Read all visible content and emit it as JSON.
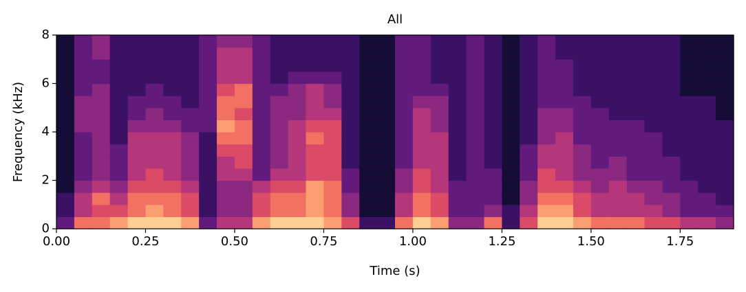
{
  "chart_data": {
    "type": "heatmap",
    "title": "All",
    "xlabel": "Time (s)",
    "ylabel": "Frequency (kHz)",
    "colormap": "magma",
    "zlim": [
      0,
      10
    ],
    "xlim": [
      0,
      1.9
    ],
    "ylim": [
      0,
      8
    ],
    "xticks": [
      {
        "value": 0,
        "label": "0.00"
      },
      {
        "value": 0.25,
        "label": "0.25"
      },
      {
        "value": 0.5,
        "label": "0.50"
      },
      {
        "value": 0.75,
        "label": "0.75"
      },
      {
        "value": 1,
        "label": "1.00"
      },
      {
        "value": 1.25,
        "label": "1.25"
      },
      {
        "value": 1.5,
        "label": "1.50"
      },
      {
        "value": 1.75,
        "label": "1.75"
      }
    ],
    "yticks": [
      0,
      2,
      4,
      6,
      8
    ],
    "z": [
      [
        3,
        2,
        2,
        1,
        1,
        1,
        1,
        1,
        1,
        1,
        1,
        1,
        1,
        1,
        1,
        1
      ],
      [
        7,
        5,
        5,
        4,
        3,
        3,
        3,
        3,
        4,
        4,
        4,
        3,
        3,
        3,
        3,
        3
      ],
      [
        7,
        6,
        7,
        5,
        4,
        4,
        4,
        4,
        4,
        4,
        4,
        4,
        3,
        3,
        4,
        4
      ],
      [
        8,
        6,
        5,
        4,
        3,
        3,
        3,
        2,
        2,
        2,
        2,
        2,
        2,
        2,
        2,
        2
      ],
      [
        9,
        7,
        7,
        6,
        5,
        5,
        5,
        5,
        4,
        3,
        3,
        2,
        2,
        2,
        2,
        2
      ],
      [
        9,
        8,
        7,
        6,
        6,
        5,
        5,
        5,
        4,
        4,
        3,
        3,
        2,
        2,
        2,
        2
      ],
      [
        9,
        7,
        7,
        6,
        5,
        5,
        5,
        5,
        4,
        3,
        3,
        2,
        2,
        2,
        2,
        2
      ],
      [
        8,
        6,
        6,
        5,
        4,
        4,
        4,
        4,
        3,
        3,
        2,
        2,
        2,
        2,
        2,
        2
      ],
      [
        3,
        2,
        2,
        2,
        2,
        2,
        2,
        2,
        3,
        3,
        3,
        3,
        3,
        3,
        3,
        3
      ],
      [
        5,
        4,
        4,
        4,
        5,
        5,
        6,
        7,
        8,
        7,
        7,
        6,
        5,
        5,
        5,
        4
      ],
      [
        5,
        4,
        4,
        4,
        5,
        6,
        6,
        7,
        7,
        6,
        7,
        7,
        5,
        5,
        5,
        4
      ],
      [
        8,
        6,
        6,
        5,
        3,
        3,
        3,
        3,
        3,
        3,
        3,
        3,
        3,
        3,
        3,
        3
      ],
      [
        9,
        7,
        7,
        6,
        5,
        4,
        4,
        4,
        4,
        4,
        4,
        3,
        2,
        2,
        2,
        2
      ],
      [
        9,
        7,
        7,
        6,
        5,
        5,
        5,
        5,
        5,
        4,
        4,
        4,
        3,
        2,
        2,
        2
      ],
      [
        9,
        8,
        8,
        8,
        6,
        6,
        6,
        7,
        6,
        5,
        5,
        5,
        3,
        2,
        2,
        2
      ],
      [
        8,
        7,
        7,
        7,
        6,
        6,
        6,
        6,
        6,
        5,
        4,
        4,
        3,
        2,
        2,
        2
      ],
      [
        6,
        4,
        4,
        3,
        3,
        2,
        2,
        2,
        2,
        2,
        2,
        2,
        2,
        2,
        2,
        2
      ],
      [
        2,
        1,
        1,
        1,
        1,
        1,
        1,
        1,
        1,
        1,
        1,
        1,
        1,
        1,
        1,
        1
      ],
      [
        2,
        1,
        1,
        1,
        1,
        1,
        1,
        1,
        1,
        1,
        1,
        1,
        1,
        1,
        1,
        1
      ],
      [
        7,
        5,
        5,
        4,
        4,
        3,
        3,
        3,
        3,
        3,
        3,
        3,
        3,
        3,
        3,
        3
      ],
      [
        9,
        7,
        7,
        6,
        6,
        5,
        5,
        5,
        5,
        5,
        4,
        3,
        3,
        3,
        3,
        3
      ],
      [
        8,
        6,
        6,
        5,
        5,
        5,
        5,
        5,
        4,
        4,
        4,
        3,
        2,
        2,
        2,
        2
      ],
      [
        4,
        3,
        3,
        3,
        2,
        2,
        2,
        2,
        2,
        2,
        2,
        2,
        2,
        2,
        2,
        2
      ],
      [
        4,
        3,
        3,
        3,
        3,
        3,
        3,
        3,
        3,
        3,
        3,
        3,
        3,
        3,
        3,
        3
      ],
      [
        7,
        4,
        3,
        3,
        3,
        2,
        2,
        2,
        2,
        2,
        2,
        2,
        2,
        2,
        2,
        2
      ],
      [
        2,
        2,
        1,
        1,
        1,
        1,
        1,
        1,
        1,
        1,
        1,
        1,
        1,
        1,
        1,
        1
      ],
      [
        6,
        5,
        4,
        4,
        3,
        3,
        3,
        2,
        2,
        2,
        2,
        2,
        2,
        2,
        2,
        2
      ],
      [
        9,
        8,
        7,
        6,
        6,
        5,
        5,
        4,
        4,
        4,
        3,
        3,
        3,
        3,
        3,
        3
      ],
      [
        9,
        8,
        7,
        6,
        5,
        5,
        5,
        5,
        4,
        4,
        3,
        3,
        3,
        3,
        2,
        2
      ],
      [
        8,
        6,
        6,
        5,
        4,
        4,
        4,
        3,
        3,
        3,
        3,
        2,
        2,
        2,
        2,
        2
      ],
      [
        7,
        5,
        5,
        4,
        4,
        3,
        3,
        3,
        3,
        3,
        2,
        2,
        2,
        2,
        2,
        2
      ],
      [
        7,
        5,
        5,
        5,
        4,
        4,
        3,
        3,
        3,
        2,
        2,
        2,
        2,
        2,
        2,
        2
      ],
      [
        7,
        5,
        5,
        4,
        3,
        3,
        3,
        3,
        3,
        2,
        2,
        2,
        2,
        2,
        2,
        2
      ],
      [
        6,
        5,
        4,
        4,
        3,
        3,
        3,
        3,
        2,
        2,
        2,
        2,
        2,
        2,
        2,
        2
      ],
      [
        6,
        4,
        4,
        3,
        3,
        3,
        2,
        2,
        2,
        2,
        2,
        2,
        2,
        2,
        2,
        2
      ],
      [
        5,
        3,
        3,
        3,
        2,
        2,
        2,
        2,
        2,
        2,
        2,
        1,
        1,
        1,
        1,
        1
      ],
      [
        5,
        3,
        3,
        2,
        2,
        2,
        2,
        2,
        2,
        2,
        2,
        1,
        1,
        1,
        1,
        1
      ],
      [
        4,
        3,
        2,
        2,
        2,
        2,
        2,
        2,
        2,
        1,
        1,
        1,
        1,
        1,
        1,
        1
      ]
    ]
  }
}
